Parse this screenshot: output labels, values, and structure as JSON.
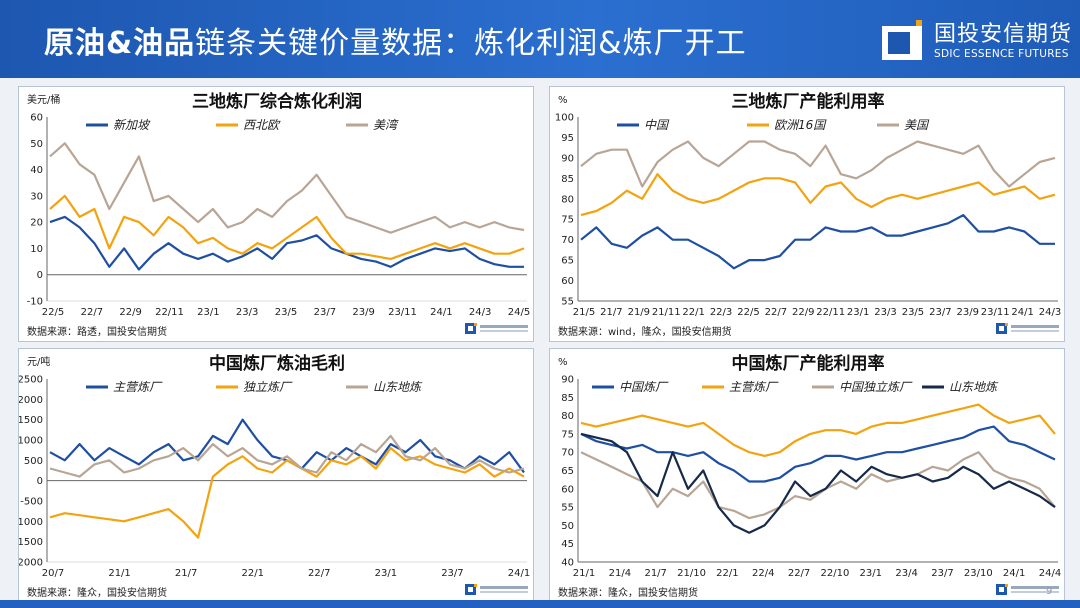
{
  "header": {
    "title_bold": "原油&油品",
    "title_rest": "链条关键价量数据：炼化利润&炼厂开工",
    "logo_cn": "国投安信期货",
    "logo_en": "SDIC ESSENCE FUTURES"
  },
  "page_number": "9",
  "colors": {
    "blue": "#1f4fa3",
    "orange": "#f2a30f",
    "tan": "#b8a595",
    "navy": "#172a4a",
    "header": "#1d57b0"
  },
  "chart_data": [
    {
      "type": "line",
      "title": "三地炼厂综合炼化利润",
      "unit": "美元/桶",
      "source": "数据来源：路透，国投安信期货",
      "ylim": [
        -10,
        60
      ],
      "yticks": [
        "60",
        "50",
        "40",
        "30",
        "20",
        "10",
        "0",
        "-10"
      ],
      "xticks": [
        "22/5",
        "22/7",
        "22/9",
        "22/11",
        "23/1",
        "23/3",
        "23/5",
        "23/7",
        "23/9",
        "23/11",
        "24/1",
        "24/3",
        "24/5"
      ],
      "series": [
        {
          "name": "新加坡",
          "color": "#1f4fa3",
          "values": [
            20,
            22,
            18,
            12,
            3,
            10,
            2,
            8,
            12,
            8,
            6,
            8,
            5,
            7,
            10,
            6,
            12,
            13,
            15,
            10,
            8,
            6,
            5,
            3,
            6,
            8,
            10,
            9,
            10,
            6,
            4,
            3,
            3
          ]
        },
        {
          "name": "西北欧",
          "color": "#f2a30f",
          "values": [
            25,
            30,
            22,
            25,
            10,
            22,
            20,
            15,
            22,
            18,
            12,
            14,
            10,
            8,
            12,
            10,
            14,
            18,
            22,
            14,
            8,
            8,
            7,
            6,
            8,
            10,
            12,
            10,
            12,
            10,
            8,
            8,
            10
          ]
        },
        {
          "name": "美湾",
          "color": "#b8a595",
          "values": [
            45,
            50,
            42,
            38,
            25,
            35,
            45,
            28,
            30,
            25,
            20,
            25,
            18,
            20,
            25,
            22,
            28,
            32,
            38,
            30,
            22,
            20,
            18,
            16,
            18,
            20,
            22,
            18,
            20,
            18,
            20,
            18,
            17
          ]
        }
      ]
    },
    {
      "type": "line",
      "title": "三地炼厂产能利用率",
      "unit": "%",
      "source": "数据来源：wind，隆众，国投安信期货",
      "ylim": [
        55,
        100
      ],
      "yticks": [
        "100",
        "95",
        "90",
        "85",
        "80",
        "75",
        "70",
        "65",
        "60",
        "55"
      ],
      "xticks": [
        "21/5",
        "21/7",
        "21/9",
        "21/11",
        "22/1",
        "22/3",
        "22/5",
        "22/7",
        "22/9",
        "22/11",
        "23/1",
        "23/3",
        "23/5",
        "23/7",
        "23/9",
        "23/11",
        "24/1",
        "24/3"
      ],
      "series": [
        {
          "name": "中国",
          "color": "#1f4fa3",
          "values": [
            70,
            73,
            69,
            68,
            71,
            73,
            70,
            70,
            68,
            66,
            63,
            65,
            65,
            66,
            70,
            70,
            73,
            72,
            72,
            73,
            71,
            71,
            72,
            73,
            74,
            76,
            72,
            72,
            73,
            72,
            69,
            69
          ]
        },
        {
          "name": "欧洲16国",
          "color": "#f2a30f",
          "values": [
            76,
            77,
            79,
            82,
            80,
            86,
            82,
            80,
            79,
            80,
            82,
            84,
            85,
            85,
            84,
            79,
            83,
            84,
            80,
            78,
            80,
            81,
            80,
            81,
            82,
            83,
            84,
            81,
            82,
            83,
            80,
            81
          ]
        },
        {
          "name": "美国",
          "color": "#b8a595",
          "values": [
            88,
            91,
            92,
            92,
            83,
            89,
            92,
            94,
            90,
            88,
            91,
            94,
            94,
            92,
            91,
            88,
            93,
            86,
            85,
            87,
            90,
            92,
            94,
            93,
            92,
            91,
            93,
            87,
            83,
            86,
            89,
            90
          ]
        }
      ]
    },
    {
      "type": "line",
      "title": "中国炼厂炼油毛利",
      "unit": "元/吨",
      "source": "数据来源：隆众，国投安信期货",
      "ylim": [
        -2000,
        2500
      ],
      "yticks": [
        "2500",
        "2000",
        "1500",
        "1000",
        "500",
        "0",
        "-500",
        "-1000",
        "-1500",
        "-2000"
      ],
      "xticks": [
        "20/7",
        "21/1",
        "21/7",
        "22/1",
        "22/7",
        "23/1",
        "23/7",
        "24/1"
      ],
      "series": [
        {
          "name": "主营炼厂",
          "color": "#1f4fa3",
          "values": [
            700,
            500,
            900,
            500,
            800,
            600,
            400,
            700,
            900,
            500,
            600,
            1100,
            900,
            1500,
            1000,
            600,
            500,
            300,
            700,
            500,
            800,
            600,
            400,
            900,
            700,
            1000,
            600,
            500,
            300,
            600,
            400,
            700,
            200
          ]
        },
        {
          "name": "独立炼厂",
          "color": "#f2a30f",
          "values": [
            -900,
            -800,
            -850,
            -900,
            -950,
            -1000,
            -900,
            -800,
            -700,
            -1000,
            -1400,
            100,
            400,
            600,
            300,
            200,
            500,
            300,
            100,
            500,
            400,
            600,
            300,
            800,
            500,
            600,
            400,
            300,
            200,
            400,
            100,
            300,
            100
          ]
        },
        {
          "name": "山东地炼",
          "color": "#b8a595",
          "values": [
            300,
            200,
            100,
            400,
            500,
            200,
            300,
            500,
            600,
            800,
            500,
            900,
            600,
            800,
            500,
            400,
            600,
            300,
            200,
            700,
            500,
            900,
            700,
            1100,
            600,
            500,
            800,
            400,
            300,
            500,
            300,
            200,
            300
          ]
        }
      ]
    },
    {
      "type": "line",
      "title": "中国炼厂产能利用率",
      "unit": "%",
      "source": "数据来源：隆众，国投安信期货",
      "ylim": [
        40,
        90
      ],
      "yticks": [
        "90",
        "85",
        "80",
        "75",
        "70",
        "65",
        "60",
        "55",
        "50",
        "45",
        "40"
      ],
      "xticks": [
        "21/1",
        "21/4",
        "21/7",
        "21/10",
        "22/1",
        "22/4",
        "22/7",
        "22/10",
        "23/1",
        "23/4",
        "23/7",
        "23/10",
        "24/1",
        "24/4"
      ],
      "series": [
        {
          "name": "中国炼厂",
          "color": "#1f4fa3",
          "values": [
            75,
            73,
            72,
            71,
            72,
            70,
            70,
            69,
            70,
            67,
            65,
            62,
            62,
            63,
            66,
            67,
            69,
            69,
            68,
            69,
            70,
            70,
            71,
            72,
            73,
            74,
            76,
            77,
            73,
            72,
            70,
            68
          ]
        },
        {
          "name": "主营炼厂",
          "color": "#f2a30f",
          "values": [
            78,
            77,
            78,
            79,
            80,
            79,
            78,
            77,
            78,
            75,
            72,
            70,
            69,
            70,
            73,
            75,
            76,
            76,
            75,
            77,
            78,
            78,
            79,
            80,
            81,
            82,
            83,
            80,
            78,
            79,
            80,
            75
          ]
        },
        {
          "name": "中国独立炼厂",
          "color": "#b8a595",
          "values": [
            70,
            68,
            66,
            64,
            62,
            55,
            60,
            58,
            62,
            55,
            54,
            52,
            53,
            55,
            58,
            57,
            60,
            62,
            60,
            64,
            62,
            63,
            64,
            66,
            65,
            68,
            70,
            65,
            63,
            62,
            60,
            55
          ]
        },
        {
          "name": "山东地炼",
          "color": "#172a4a",
          "values": [
            75,
            74,
            73,
            70,
            62,
            58,
            70,
            60,
            65,
            55,
            50,
            48,
            50,
            55,
            62,
            58,
            60,
            65,
            62,
            66,
            64,
            63,
            64,
            62,
            63,
            66,
            64,
            60,
            62,
            60,
            58,
            55
          ]
        }
      ]
    }
  ]
}
